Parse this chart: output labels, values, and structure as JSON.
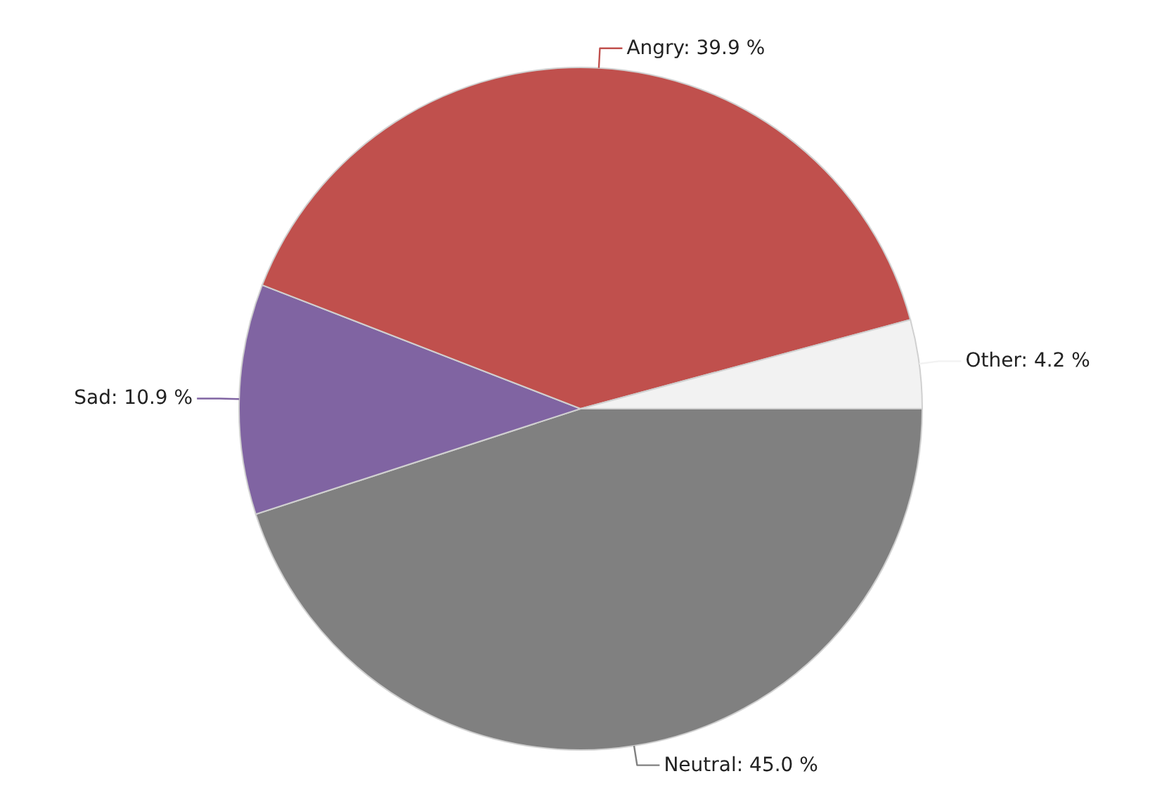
{
  "chart_data": {
    "type": "pie",
    "categories": [
      "Neutral",
      "Sad",
      "Angry",
      "Other"
    ],
    "values": [
      45.0,
      10.9,
      39.9,
      4.2
    ],
    "colors": [
      "#808080",
      "#8064a2",
      "#c0504d",
      "#f2f2f2"
    ],
    "value_labels": [
      "45.0 %",
      "10.9 %",
      "39.9 %",
      "4.2 %"
    ]
  }
}
